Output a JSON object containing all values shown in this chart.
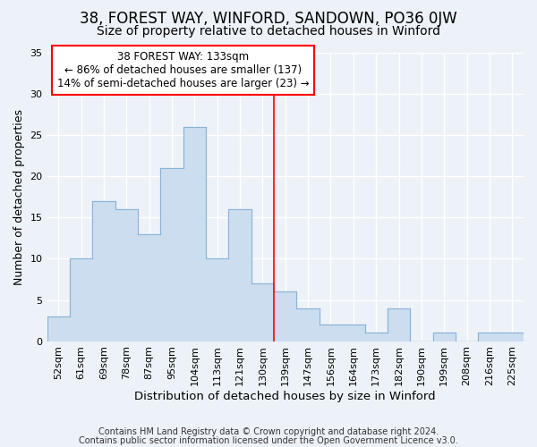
{
  "title": "38, FOREST WAY, WINFORD, SANDOWN, PO36 0JW",
  "subtitle": "Size of property relative to detached houses in Winford",
  "xlabel": "Distribution of detached houses by size in Winford",
  "ylabel": "Number of detached properties",
  "categories": [
    "52sqm",
    "61sqm",
    "69sqm",
    "78sqm",
    "87sqm",
    "95sqm",
    "104sqm",
    "113sqm",
    "121sqm",
    "130sqm",
    "139sqm",
    "147sqm",
    "156sqm",
    "164sqm",
    "173sqm",
    "182sqm",
    "190sqm",
    "199sqm",
    "208sqm",
    "216sqm",
    "225sqm"
  ],
  "values": [
    3,
    10,
    17,
    16,
    13,
    21,
    26,
    10,
    16,
    7,
    6,
    4,
    2,
    2,
    1,
    4,
    0,
    1,
    0,
    1,
    1
  ],
  "bar_color": "#ccddf0",
  "bar_edge_color": "#8ab4d8",
  "vline_x": 9.5,
  "vline_color": "red",
  "annotation_text": "38 FOREST WAY: 133sqm\n← 86% of detached houses are smaller (137)\n14% of semi-detached houses are larger (23) →",
  "annotation_box_color": "white",
  "annotation_box_edge_color": "red",
  "ylim": [
    0,
    35
  ],
  "yticks": [
    0,
    5,
    10,
    15,
    20,
    25,
    30,
    35
  ],
  "bg_color": "#edf2f9",
  "plot_bg_color": "#edf2f9",
  "fig_bg_color": "#edf2f9",
  "footer_line1": "Contains HM Land Registry data © Crown copyright and database right 2024.",
  "footer_line2": "Contains public sector information licensed under the Open Government Licence v3.0.",
  "title_fontsize": 12,
  "subtitle_fontsize": 10,
  "axis_label_fontsize": 9,
  "tick_fontsize": 8,
  "annotation_fontsize": 8.5,
  "footer_fontsize": 7
}
